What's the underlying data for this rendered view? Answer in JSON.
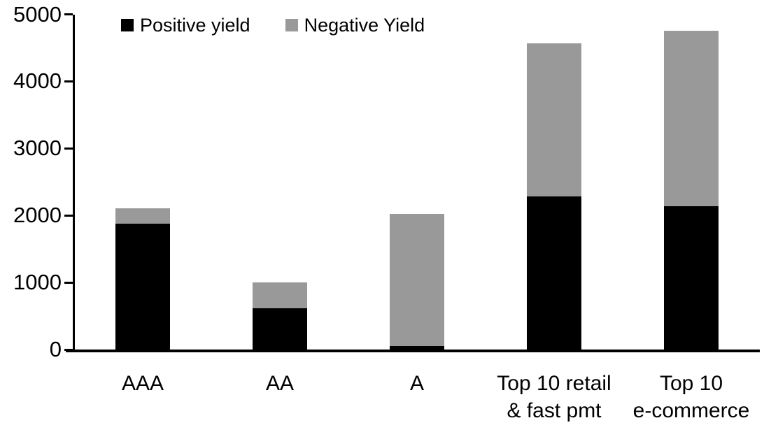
{
  "legend": {
    "items": [
      {
        "label": "Positive yield",
        "color": "#000000"
      },
      {
        "label": "Negative Yield",
        "color": "#999999"
      }
    ]
  },
  "chart_data": {
    "type": "bar",
    "stacked": true,
    "title": "",
    "xlabel": "",
    "ylabel": "",
    "categories": [
      "AAA",
      "AA",
      "A",
      "Top 10 retail & fast pmt",
      "Top 10 e-commerce"
    ],
    "category_label_lines": [
      [
        "AAA"
      ],
      [
        "AA"
      ],
      [
        "A"
      ],
      [
        "Top 10 retail",
        "& fast pmt"
      ],
      [
        "Top 10",
        "e-commerce"
      ]
    ],
    "series": [
      {
        "name": "Positive yield",
        "color": "#000000",
        "values": [
          1880,
          620,
          50,
          2280,
          2140
        ]
      },
      {
        "name": "Negative Yield",
        "color": "#999999",
        "values": [
          230,
          380,
          1970,
          2290,
          2620
        ]
      }
    ],
    "ylim": [
      0,
      5000
    ],
    "yticks": [
      0,
      1000,
      2000,
      3000,
      4000,
      5000
    ],
    "grid": false,
    "legend_position": "top-inside",
    "background": "#ffffff",
    "axis_color": "#000000"
  }
}
